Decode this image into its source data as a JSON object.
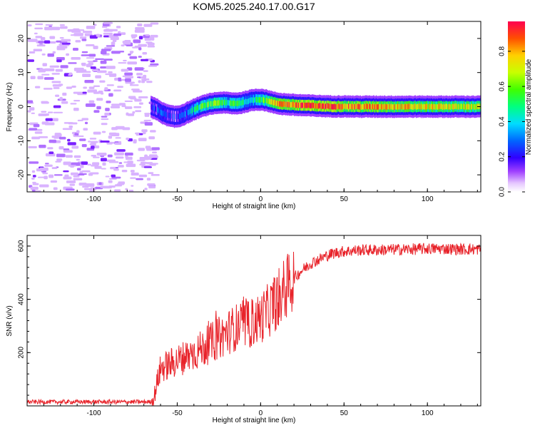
{
  "title": "KOM5.2025.240.17.00.G17",
  "chart_data": [
    {
      "type": "heatmap",
      "title": "KOM5.2025.240.17.00.G17",
      "xlabel": "Height of straight line (km)",
      "ylabel": "Frequency (Hz)",
      "xlim": [
        -140,
        132
      ],
      "ylim": [
        -25,
        25
      ],
      "xticks": [
        -100,
        -50,
        0,
        50,
        100
      ],
      "yticks": [
        -20,
        -10,
        0,
        10,
        20
      ],
      "noise_region_x": [
        -140,
        -65
      ],
      "ridge": {
        "x": [
          -66,
          -62,
          -58,
          -55,
          -52,
          -49,
          -46,
          -43,
          -40,
          -36,
          -32,
          -28,
          -24,
          -20,
          -16,
          -12,
          -8,
          -4,
          0,
          4,
          8,
          12,
          20,
          30,
          40,
          60,
          80,
          100,
          132
        ],
        "freq": [
          0.0,
          -1.0,
          -2.2,
          -2.7,
          -3.0,
          -2.8,
          -2.2,
          -1.5,
          -0.8,
          0.0,
          0.6,
          1.0,
          1.2,
          1.1,
          0.9,
          1.1,
          1.6,
          2.0,
          2.1,
          1.7,
          1.1,
          0.8,
          0.5,
          0.3,
          0.1,
          0.0,
          0.0,
          0.0,
          0.0
        ],
        "amplitude": [
          0.2,
          0.25,
          0.25,
          0.25,
          0.2,
          0.25,
          0.3,
          0.35,
          0.45,
          0.55,
          0.6,
          0.6,
          0.55,
          0.5,
          0.55,
          0.5,
          0.45,
          0.5,
          0.55,
          0.65,
          0.75,
          0.85,
          0.9,
          0.95,
          0.9,
          0.85,
          0.8,
          0.75,
          0.7
        ]
      }
    },
    {
      "type": "colorbar",
      "label": "Normalized spectral amplitude",
      "range": [
        0.0,
        0.97
      ],
      "ticks": [
        "0.0",
        "0.2",
        "0.4",
        "0.6",
        "0.8"
      ]
    },
    {
      "type": "line",
      "xlabel": "Height of straight line (km)",
      "ylabel": "SNR (v/v)",
      "xlim": [
        -140,
        132
      ],
      "ylim": [
        0,
        640
      ],
      "xticks": [
        -100,
        -50,
        0,
        50,
        100
      ],
      "yticks": [
        200,
        400,
        600
      ],
      "series_color": "#e8232a",
      "series": [
        {
          "name": "SNR",
          "x": [
            -140,
            -120,
            -100,
            -80,
            -66,
            -64,
            -62,
            -60,
            -55,
            -50,
            -45,
            -40,
            -35,
            -30,
            -25,
            -20,
            -15,
            -10,
            -5,
            0,
            5,
            10,
            15,
            20,
            25,
            30,
            35,
            40,
            45,
            50,
            60,
            70,
            80,
            90,
            100,
            110,
            120,
            132
          ],
          "y": [
            15,
            15,
            15,
            15,
            15,
            30,
            90,
            140,
            155,
            170,
            185,
            200,
            215,
            235,
            255,
            275,
            295,
            300,
            310,
            330,
            360,
            400,
            440,
            480,
            510,
            535,
            550,
            565,
            575,
            580,
            585,
            585,
            587,
            588,
            590,
            590,
            588,
            588
          ]
        }
      ]
    }
  ]
}
